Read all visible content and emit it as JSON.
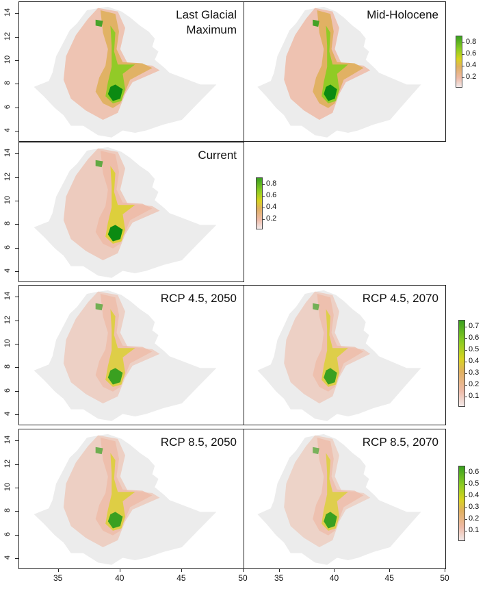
{
  "panels": {
    "lgm": {
      "title_line1": "Last Glacial",
      "title_line2": "Maximum",
      "level": 0.85
    },
    "mid_holocene": {
      "title": "Mid-Holocene",
      "level": 0.9
    },
    "current": {
      "title": "Current",
      "level": 0.55
    },
    "rcp45_2050": {
      "title": "RCP 4.5, 2050",
      "level": 0.38
    },
    "rcp45_2070": {
      "title": "RCP 4.5, 2070",
      "level": 0.36
    },
    "rcp85_2050": {
      "title": "RCP 8.5, 2050",
      "level": 0.42
    },
    "rcp85_2070": {
      "title": "RCP 8.5, 2070",
      "level": 0.3
    }
  },
  "axes": {
    "y_ticks": [
      "4",
      "6",
      "8",
      "10",
      "12",
      "14"
    ],
    "x_ticks": [
      "35",
      "40",
      "45",
      "50"
    ]
  },
  "legends": {
    "top": [
      "0.8",
      "0.6",
      "0.4",
      "0.2"
    ],
    "current": [
      "0.8",
      "0.6",
      "0.4",
      "0.2"
    ],
    "rcp45": [
      "0.7",
      "0.6",
      "0.5",
      "0.4",
      "0.3",
      "0.2",
      "0.1"
    ],
    "rcp85": [
      "0.6",
      "0.5",
      "0.4",
      "0.3",
      "0.2",
      "0.1"
    ]
  },
  "colors": {
    "low": "#f2e9e9",
    "pink": "#eebaa6",
    "orange": "#e0b060",
    "yellow": "#d8d320",
    "light_green": "#8ccc22",
    "green": "#3aa020",
    "dark_green": "#0b8a12",
    "background": "#ececec"
  }
}
